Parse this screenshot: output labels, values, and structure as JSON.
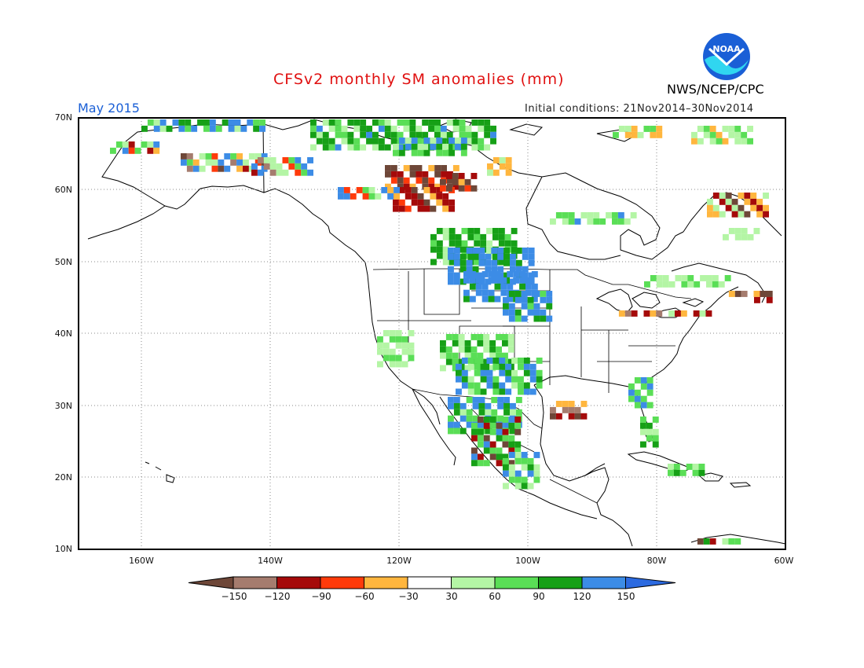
{
  "header": {
    "title": "CFSv2 monthly SM anomalies (mm)",
    "month": "May 2015",
    "initial_conditions": "Initial conditions: 21Nov2014–30Nov2014",
    "agency": "NWS/NCEP/CPC",
    "logo_text": "NOAA"
  },
  "map": {
    "lat_labels": [
      "70N",
      "60N",
      "50N",
      "40N",
      "30N",
      "20N",
      "10N"
    ],
    "lon_labels": [
      "160W",
      "140W",
      "120W",
      "100W",
      "80W",
      "60W"
    ],
    "grid": "dotted"
  },
  "colorbar": {
    "labels": [
      "−150",
      "−120",
      "−90",
      "−60",
      "−30",
      "30",
      "60",
      "90",
      "120",
      "150"
    ],
    "colors": [
      "#6e4738",
      "#a57c6e",
      "#a50a0a",
      "#ff3a0a",
      "#ffb63e",
      "#ffffff",
      "#b4f5a5",
      "#5ade56",
      "#16a016",
      "#3c8ce6",
      "#2c6ae0"
    ]
  }
}
